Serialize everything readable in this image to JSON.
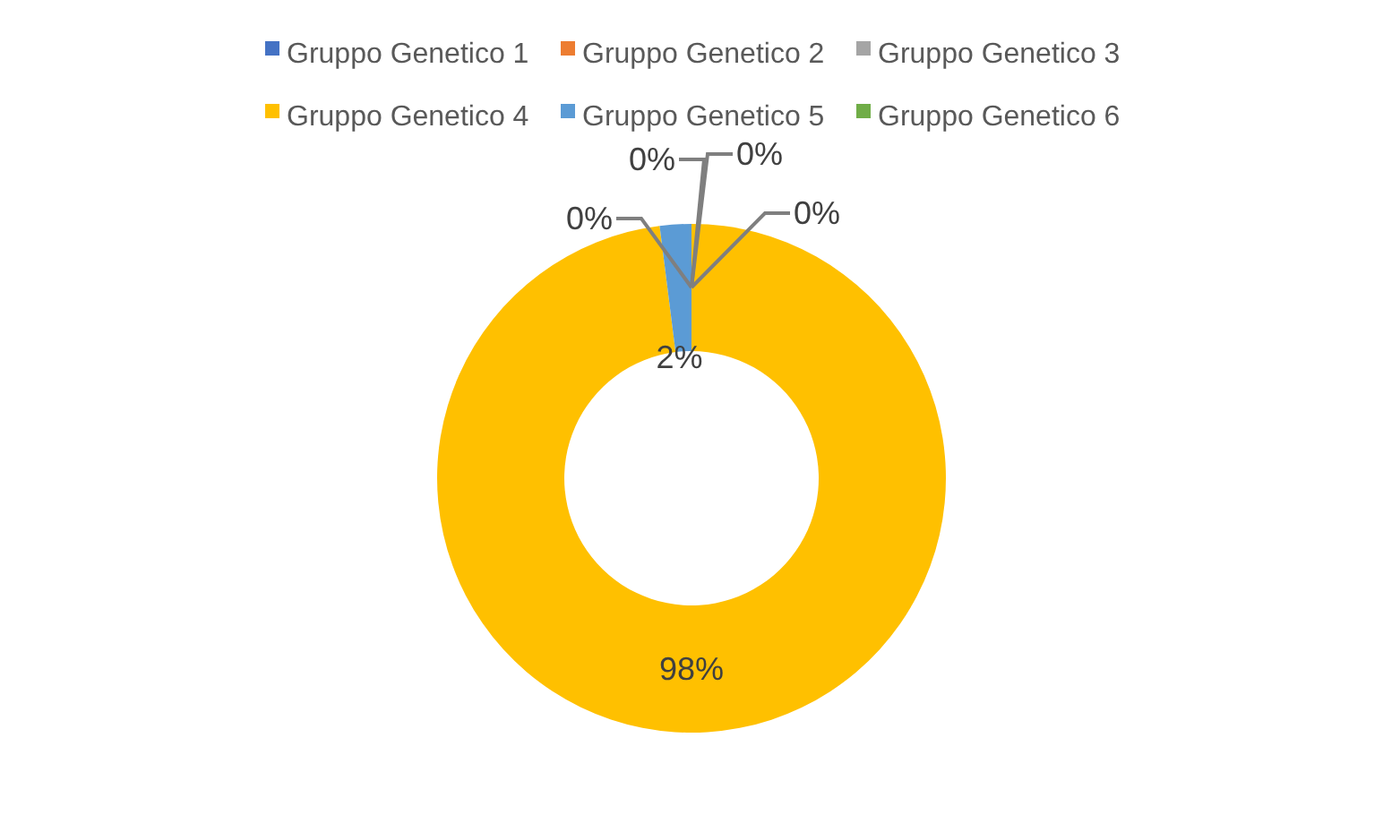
{
  "chart_data": {
    "type": "donut",
    "categories": [
      "Gruppo Genetico 1",
      "Gruppo Genetico 2",
      "Gruppo Genetico 3",
      "Gruppo Genetico 4",
      "Gruppo Genetico 5",
      "Gruppo Genetico 6"
    ],
    "values": [
      0,
      0,
      0,
      98,
      2,
      0
    ],
    "colors": [
      "#4472c4",
      "#ed7d31",
      "#a5a5a5",
      "#ffc000",
      "#5b9bd5",
      "#70ad47"
    ],
    "value_labels": [
      "0%",
      "0%",
      "0%",
      "98%",
      "2%",
      "0%"
    ],
    "legend": "top"
  }
}
